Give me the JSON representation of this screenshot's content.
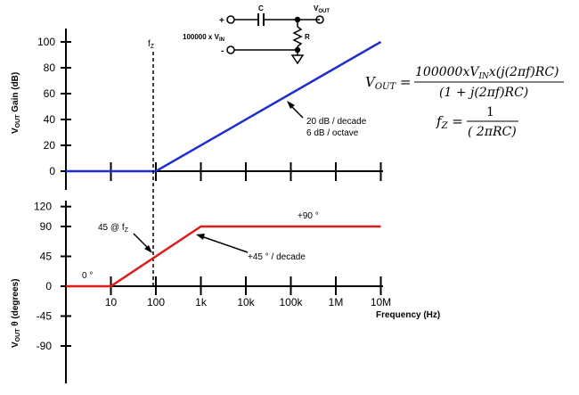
{
  "chart_data": [
    {
      "type": "line",
      "ylabel_main": "V",
      "ylabel_sub": "OUT",
      "ylabel_rest": " Gain (dB)",
      "yticks": [
        "0",
        "20",
        "40",
        "60",
        "80",
        "100"
      ],
      "ylim": [
        0,
        100
      ],
      "x_scale": "log",
      "xlim": [
        1,
        10000000
      ],
      "grid": false,
      "series": [
        {
          "color": "#1f2fcc",
          "x": [
            1,
            100,
            10000000
          ],
          "y": [
            0,
            0,
            100
          ]
        }
      ],
      "corner_label": "f",
      "corner_sub": "Z",
      "annotation": [
        "20 dB / decade",
        "6 dB / octave"
      ]
    },
    {
      "type": "line",
      "ylabel_main": "V",
      "ylabel_sub": "OUT",
      "ylabel_rest": " θ (degrees)",
      "xlabel": "Frequency (Hz)",
      "xticks": [
        "10",
        "100",
        "1k",
        "10k",
        "100k",
        "1M",
        "10M"
      ],
      "yticks": [
        "120",
        "90",
        "45",
        "0",
        "-45",
        "-90"
      ],
      "ylim": [
        -120,
        120
      ],
      "x_scale": "log",
      "xlim": [
        1,
        10000000
      ],
      "grid": false,
      "series": [
        {
          "color": "#dd1c1c",
          "x": [
            1,
            10,
            1000,
            10000000
          ],
          "y": [
            0,
            0,
            90,
            90
          ]
        }
      ],
      "annotations": {
        "zero": "0 °",
        "ninety": "+90 °",
        "fz_point": "45 @ f",
        "fz_point_sub": "Z",
        "slope": "+45 ° / decade"
      }
    }
  ],
  "circuit": {
    "plus": "+",
    "minus": "-",
    "source": "100000 x V",
    "source_sub": "IN",
    "cap": "C",
    "res": "R",
    "vout": "V",
    "vout_sub": "OUT"
  },
  "equations": {
    "vout_lhs": "V",
    "vout_lhs_sub": "OUT",
    "vout_num": "100000xV",
    "vout_num_sub": "IN",
    "vout_num_rest": "x(j(2πf)RC)",
    "vout_den": "(1 + j(2πf)RC)",
    "fz_lhs": "f",
    "fz_lhs_sub": "Z",
    "fz_num": "1",
    "fz_den": "( 2πRC)"
  }
}
